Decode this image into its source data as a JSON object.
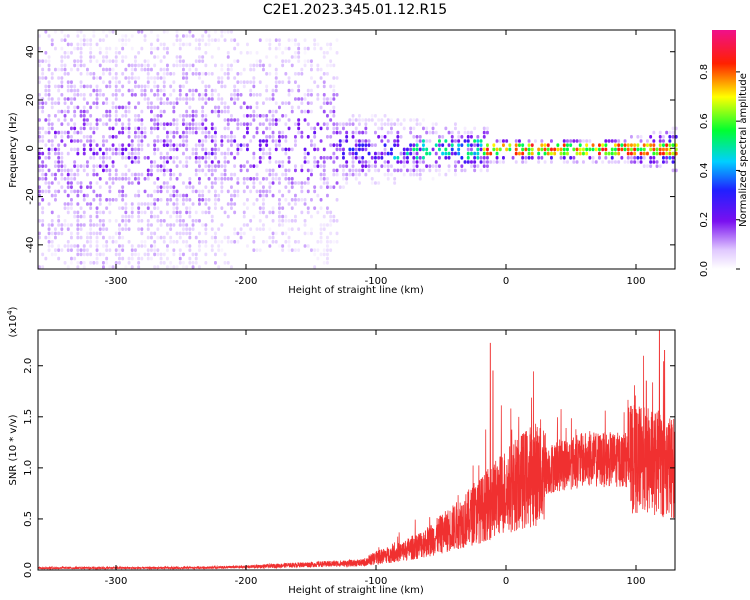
{
  "title": "C2E1.2023.345.01.12.R15",
  "chart_data": [
    {
      "type": "heatmap",
      "xlabel": "Height of straight line (km)",
      "ylabel": "Frequency (Hz)",
      "xlim": [
        -360,
        130
      ],
      "ylim": [
        -50,
        49
      ],
      "xticks": [
        -300,
        -200,
        -100,
        0,
        100
      ],
      "yticks": [
        -40,
        -20,
        0,
        20,
        40
      ],
      "colorbar": {
        "label": "Normalized spectral amplitude",
        "range": [
          0,
          0.97
        ],
        "ticks": [
          "0.0",
          "0.2",
          "0.4",
          "0.6",
          "0.8"
        ],
        "colormap": "rainbow (white-violet-blue-cyan-green-yellow-red-magenta)"
      }
    },
    {
      "type": "line",
      "xlabel": "Height of straight line (km)",
      "ylabel": "SNR (10 * v/v)",
      "yscale_label": "(x10",
      "yscale_exp": "4",
      "yscale_close": ")",
      "xlim": [
        -360,
        130
      ],
      "ylim": [
        0,
        2.35
      ],
      "xticks": [
        -300,
        -200,
        -100,
        0,
        100
      ],
      "yticks": [
        "0.0",
        "0.5",
        "1.0",
        "1.5",
        "2.0"
      ],
      "color": "#f03030",
      "profile": [
        {
          "x": -360,
          "y": 0.02
        },
        {
          "x": -250,
          "y": 0.02
        },
        {
          "x": -200,
          "y": 0.03
        },
        {
          "x": -160,
          "y": 0.05
        },
        {
          "x": -110,
          "y": 0.07
        },
        {
          "x": -100,
          "y": 0.12
        },
        {
          "x": -80,
          "y": 0.18
        },
        {
          "x": -60,
          "y": 0.28
        },
        {
          "x": -40,
          "y": 0.42
        },
        {
          "x": -20,
          "y": 0.58
        },
        {
          "x": 0,
          "y": 0.78
        },
        {
          "x": 20,
          "y": 0.93
        },
        {
          "x": 40,
          "y": 1.02
        },
        {
          "x": 60,
          "y": 1.08
        },
        {
          "x": 80,
          "y": 1.08
        },
        {
          "x": 100,
          "y": 1.08
        },
        {
          "x": 115,
          "y": 1.05
        },
        {
          "x": 130,
          "y": 1.0
        }
      ],
      "peaks": [
        {
          "x": -12,
          "y": 2.22
        },
        {
          "x": 118,
          "y": 2.35
        },
        {
          "x": 122,
          "y": 2.15
        },
        {
          "x": -10,
          "y": 1.95
        },
        {
          "x": 108,
          "y": 1.85
        }
      ]
    }
  ]
}
